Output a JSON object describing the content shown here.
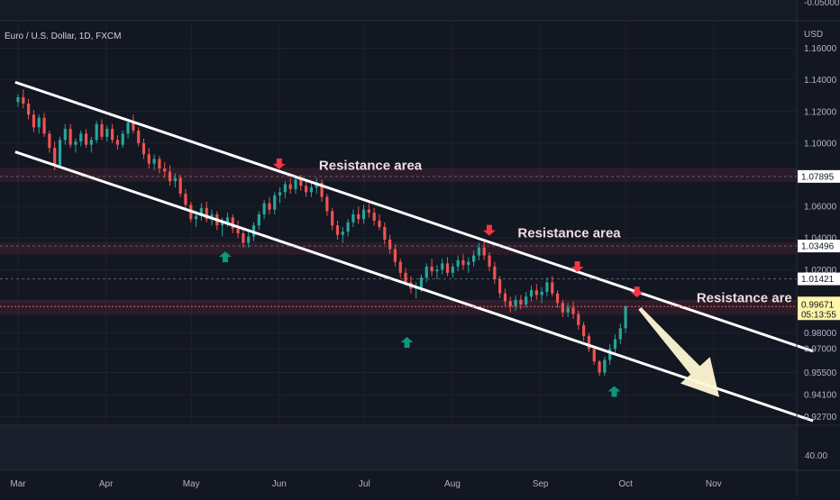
{
  "chart_data": {
    "type": "candlestick",
    "title": "Euro / U.S. Dollar, 1D, FXCM",
    "currency_label": "USD",
    "top_price_label": "-0.05000",
    "ylim": [
      0.9217,
      1.1768
    ],
    "x_ticks": [
      {
        "label": "Mar",
        "day": 0
      },
      {
        "label": "Apr",
        "day": 31
      },
      {
        "label": "May",
        "day": 61
      },
      {
        "label": "Jun",
        "day": 92
      },
      {
        "label": "Jul",
        "day": 122
      },
      {
        "label": "Aug",
        "day": 153
      },
      {
        "label": "Sep",
        "day": 184
      },
      {
        "label": "Oct",
        "day": 214
      },
      {
        "label": "Nov",
        "day": 245
      }
    ],
    "y_ticks": [
      1.16,
      1.14,
      1.12,
      1.1,
      1.06,
      1.04,
      1.02,
      1.0,
      0.98,
      0.97,
      0.955,
      0.941,
      0.927
    ],
    "price_labels": [
      {
        "value": "1.07895",
        "price": 1.07895,
        "kind": "line"
      },
      {
        "value": "1.03496",
        "price": 1.03496,
        "kind": "line"
      },
      {
        "value": "1.01421",
        "price": 1.01421,
        "kind": "line"
      },
      {
        "value": "0.99671",
        "price": 0.99671,
        "kind": "last",
        "countdown": "05:13:55"
      }
    ],
    "resistance_zones": [
      [
        1.0755,
        1.0845
      ],
      [
        1.0295,
        1.0375
      ],
      [
        0.9915,
        1.001
      ]
    ],
    "channel": {
      "upper": [
        {
          "day": -1,
          "price": 1.1385
        },
        {
          "day": 280,
          "price": 0.9685
        }
      ],
      "lower": [
        {
          "day": -1,
          "price": 1.0945
        },
        {
          "day": 280,
          "price": 0.9245
        }
      ]
    },
    "annotations": [
      {
        "text": "Resistance area",
        "day": 106,
        "price": 1.083
      },
      {
        "text": "Resistance area",
        "day": 176,
        "price": 1.0405
      },
      {
        "text": "Resistance are",
        "day": 239,
        "price": 0.9995
      }
    ],
    "arrows_down": [
      {
        "day": 92,
        "price": 1.0835
      },
      {
        "day": 166,
        "price": 1.0415
      },
      {
        "day": 197,
        "price": 1.0185
      },
      {
        "day": 218,
        "price": 1.0025
      }
    ],
    "arrows_up": [
      {
        "day": 73,
        "price": 1.0315
      },
      {
        "day": 137,
        "price": 0.9775
      },
      {
        "day": 210,
        "price": 0.9465
      }
    ],
    "forecast_arrow": {
      "from": {
        "day": 219,
        "price": 0.9955
      },
      "to": {
        "day": 247,
        "price": 0.9395
      }
    },
    "candles": [
      [
        1.126,
        1.131,
        1.123,
        1.129
      ],
      [
        1.129,
        1.134,
        1.122,
        1.125
      ],
      [
        1.125,
        1.128,
        1.115,
        1.118
      ],
      [
        1.118,
        1.121,
        1.107,
        1.11
      ],
      [
        1.11,
        1.118,
        1.106,
        1.116
      ],
      [
        1.116,
        1.119,
        1.104,
        1.106
      ],
      [
        1.106,
        1.108,
        1.094,
        1.097
      ],
      [
        1.097,
        1.101,
        1.083,
        1.086
      ],
      [
        1.086,
        1.104,
        1.084,
        1.102
      ],
      [
        1.102,
        1.112,
        1.099,
        1.109
      ],
      [
        1.109,
        1.112,
        1.097,
        1.099
      ],
      [
        1.099,
        1.103,
        1.094,
        1.101
      ],
      [
        1.101,
        1.108,
        1.098,
        1.106
      ],
      [
        1.106,
        1.109,
        1.097,
        1.099
      ],
      [
        1.099,
        1.104,
        1.094,
        1.102
      ],
      [
        1.102,
        1.114,
        1.1,
        1.112
      ],
      [
        1.112,
        1.115,
        1.102,
        1.104
      ],
      [
        1.104,
        1.111,
        1.101,
        1.109
      ],
      [
        1.109,
        1.112,
        1.1,
        1.102
      ],
      [
        1.102,
        1.105,
        1.096,
        1.099
      ],
      [
        1.099,
        1.108,
        1.097,
        1.106
      ],
      [
        1.106,
        1.115,
        1.103,
        1.113
      ],
      [
        1.113,
        1.118,
        1.106,
        1.108
      ],
      [
        1.108,
        1.11,
        1.098,
        1.1
      ],
      [
        1.1,
        1.103,
        1.09,
        1.093
      ],
      [
        1.093,
        1.097,
        1.084,
        1.087
      ],
      [
        1.087,
        1.093,
        1.083,
        1.09
      ],
      [
        1.09,
        1.092,
        1.081,
        1.084
      ],
      [
        1.084,
        1.088,
        1.078,
        1.082
      ],
      [
        1.082,
        1.086,
        1.073,
        1.076
      ],
      [
        1.076,
        1.081,
        1.072,
        1.078
      ],
      [
        1.078,
        1.08,
        1.066,
        1.068
      ],
      [
        1.068,
        1.071,
        1.058,
        1.061
      ],
      [
        1.061,
        1.063,
        1.05,
        1.052
      ],
      [
        1.052,
        1.057,
        1.047,
        1.054
      ],
      [
        1.054,
        1.062,
        1.051,
        1.059
      ],
      [
        1.059,
        1.063,
        1.05,
        1.052
      ],
      [
        1.052,
        1.058,
        1.048,
        1.055
      ],
      [
        1.055,
        1.057,
        1.045,
        1.048
      ],
      [
        1.048,
        1.053,
        1.041,
        1.05
      ],
      [
        1.05,
        1.056,
        1.047,
        1.053
      ],
      [
        1.053,
        1.055,
        1.043,
        1.046
      ],
      [
        1.046,
        1.051,
        1.04,
        1.043
      ],
      [
        1.043,
        1.045,
        1.034,
        1.037
      ],
      [
        1.037,
        1.044,
        1.034,
        1.041
      ],
      [
        1.041,
        1.05,
        1.038,
        1.048
      ],
      [
        1.048,
        1.057,
        1.045,
        1.055
      ],
      [
        1.055,
        1.064,
        1.052,
        1.062
      ],
      [
        1.062,
        1.066,
        1.055,
        1.058
      ],
      [
        1.058,
        1.069,
        1.055,
        1.067
      ],
      [
        1.067,
        1.072,
        1.062,
        1.069
      ],
      [
        1.069,
        1.076,
        1.065,
        1.074
      ],
      [
        1.074,
        1.078,
        1.068,
        1.071
      ],
      [
        1.071,
        1.079,
        1.068,
        1.077
      ],
      [
        1.077,
        1.08,
        1.07,
        1.073
      ],
      [
        1.073,
        1.076,
        1.066,
        1.069
      ],
      [
        1.069,
        1.075,
        1.066,
        1.072
      ],
      [
        1.072,
        1.078,
        1.068,
        1.075
      ],
      [
        1.075,
        1.077,
        1.063,
        1.066
      ],
      [
        1.066,
        1.068,
        1.054,
        1.057
      ],
      [
        1.057,
        1.059,
        1.045,
        1.048
      ],
      [
        1.048,
        1.051,
        1.039,
        1.042
      ],
      [
        1.042,
        1.047,
        1.037,
        1.044
      ],
      [
        1.044,
        1.052,
        1.041,
        1.05
      ],
      [
        1.05,
        1.058,
        1.047,
        1.055
      ],
      [
        1.055,
        1.06,
        1.049,
        1.052
      ],
      [
        1.052,
        1.061,
        1.049,
        1.058
      ],
      [
        1.058,
        1.062,
        1.053,
        1.056
      ],
      [
        1.056,
        1.059,
        1.048,
        1.051
      ],
      [
        1.051,
        1.055,
        1.045,
        1.047
      ],
      [
        1.047,
        1.05,
        1.036,
        1.039
      ],
      [
        1.039,
        1.042,
        1.03,
        1.033
      ],
      [
        1.033,
        1.036,
        1.022,
        1.025
      ],
      [
        1.025,
        1.027,
        1.015,
        1.018
      ],
      [
        1.018,
        1.021,
        1.01,
        1.012
      ],
      [
        1.012,
        1.016,
        1.005,
        1.008
      ],
      [
        1.008,
        1.012,
        1.002,
        1.009
      ],
      [
        1.009,
        1.017,
        1.006,
        1.015
      ],
      [
        1.015,
        1.024,
        1.012,
        1.022
      ],
      [
        1.022,
        1.027,
        1.016,
        1.019
      ],
      [
        1.019,
        1.023,
        1.014,
        1.02
      ],
      [
        1.02,
        1.027,
        1.017,
        1.024
      ],
      [
        1.024,
        1.028,
        1.016,
        1.018
      ],
      [
        1.018,
        1.024,
        1.015,
        1.022
      ],
      [
        1.022,
        1.029,
        1.019,
        1.026
      ],
      [
        1.026,
        1.03,
        1.02,
        1.023
      ],
      [
        1.023,
        1.028,
        1.018,
        1.025
      ],
      [
        1.025,
        1.032,
        1.022,
        1.029
      ],
      [
        1.029,
        1.037,
        1.026,
        1.034
      ],
      [
        1.034,
        1.038,
        1.026,
        1.029
      ],
      [
        1.029,
        1.031,
        1.019,
        1.022
      ],
      [
        1.022,
        1.025,
        1.011,
        1.014
      ],
      [
        1.014,
        1.016,
        1.002,
        1.005
      ],
      [
        1.005,
        1.008,
        0.997,
        1.0
      ],
      [
        1.0,
        1.003,
        0.993,
        0.997
      ],
      [
        0.997,
        1.004,
        0.994,
        1.001
      ],
      [
        1.001,
        1.004,
        0.995,
        0.998
      ],
      [
        0.998,
        1.006,
        0.996,
        1.003
      ],
      [
        1.003,
        1.01,
        1.0,
        1.007
      ],
      [
        1.007,
        1.011,
        1.001,
        1.004
      ],
      [
        1.004,
        1.009,
        0.999,
        1.006
      ],
      [
        1.006,
        1.015,
        1.003,
        1.012
      ],
      [
        1.012,
        1.016,
        1.003,
        1.005
      ],
      [
        1.005,
        1.007,
        0.996,
        0.999
      ],
      [
        0.999,
        1.001,
        0.99,
        0.993
      ],
      [
        0.993,
        0.999,
        0.99,
        0.996
      ],
      [
        0.996,
        1.0,
        0.989,
        0.992
      ],
      [
        0.992,
        0.994,
        0.982,
        0.985
      ],
      [
        0.985,
        0.987,
        0.975,
        0.978
      ],
      [
        0.978,
        0.98,
        0.968,
        0.97
      ],
      [
        0.97,
        0.972,
        0.96,
        0.962
      ],
      [
        0.962,
        0.963,
        0.953,
        0.955
      ],
      [
        0.955,
        0.965,
        0.953,
        0.963
      ],
      [
        0.963,
        0.973,
        0.96,
        0.97
      ],
      [
        0.97,
        0.979,
        0.967,
        0.976
      ],
      [
        0.976,
        0.986,
        0.973,
        0.983
      ],
      [
        0.983,
        0.995,
        0.98,
        0.997
      ]
    ]
  }
}
